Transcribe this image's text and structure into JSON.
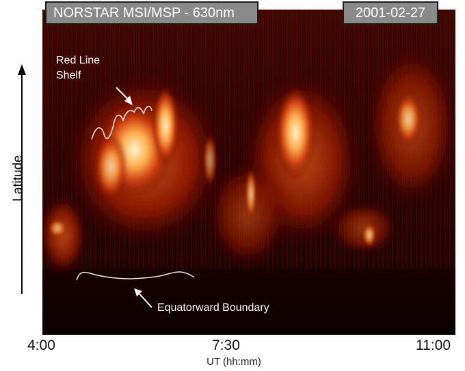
{
  "title": "NORSTAR MSI/MSP - 630nm",
  "date": "2001-02-27",
  "y_axis_label": "Latitude",
  "x_axis_label": "UT (hh:mm)",
  "x_ticks": [
    "4:00",
    "7:30",
    "11:00"
  ],
  "annotations": {
    "red_line_shelf": [
      "Red Line",
      "Shelf"
    ],
    "equatorward_boundary": "Equatorward Boundary"
  },
  "colors": {
    "background": "#1a0000",
    "aurora_mid": "#b02000",
    "aurora_bright": "#ffd080",
    "annotation": "#ffffff",
    "title_box": "#8a8a8a"
  }
}
